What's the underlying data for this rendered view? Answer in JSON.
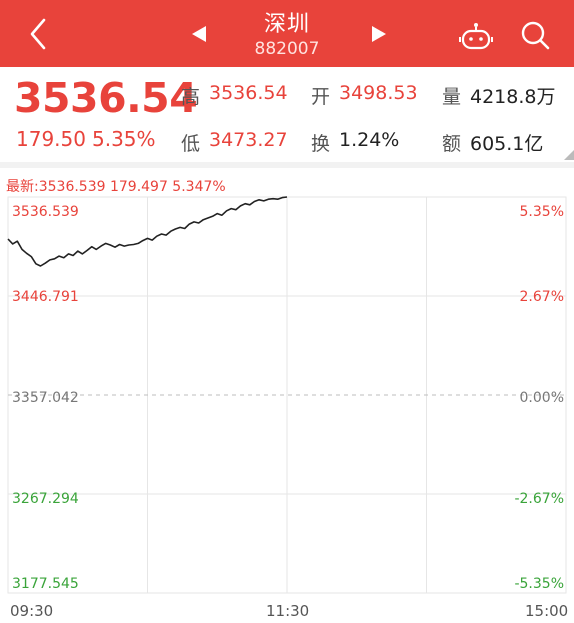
{
  "header": {
    "title": "深圳",
    "code": "882007",
    "icons": [
      "back-icon",
      "prev-arrow-icon",
      "next-arrow-icon",
      "robot-icon",
      "search-icon"
    ]
  },
  "quote": {
    "price": "3536.54",
    "change": "179.50",
    "change_pct": "5.35%",
    "high_label": "高",
    "high": "3536.54",
    "open_label": "开",
    "open": "3498.53",
    "volume_label": "量",
    "volume": "4218.8万",
    "low_label": "低",
    "low": "3473.27",
    "turnover_label": "换",
    "turnover": "1.24%",
    "amount_label": "额",
    "amount": "605.1亿"
  },
  "chart": {
    "latest_text": "最新:3536.539  179.497  5.347%"
  },
  "colors": {
    "brand": "#e8433b",
    "up": "#e8433b",
    "down": "#3aa43a"
  },
  "chart_data": {
    "type": "line",
    "x_label_ticks": [
      "09:30",
      "11:30",
      "15:00"
    ],
    "y_left_ticks": [
      "3536.539",
      "3446.791",
      "3357.042",
      "3267.294",
      "3177.545"
    ],
    "y_right_ticks": [
      "5.35%",
      "2.67%",
      "0.00%",
      "-2.67%",
      "-5.35%"
    ],
    "ylim": [
      3177.545,
      3536.539
    ],
    "prev_close": 3357.042,
    "total_minutes": 240,
    "x_minutes": [
      0,
      2,
      4,
      6,
      8,
      10,
      12,
      14,
      16,
      18,
      20,
      22,
      24,
      26,
      28,
      30,
      32,
      34,
      36,
      38,
      40,
      42,
      44,
      46,
      48,
      50,
      52,
      54,
      56,
      58,
      60,
      62,
      64,
      66,
      68,
      70,
      72,
      74,
      76,
      78,
      80,
      82,
      84,
      86,
      88,
      90,
      92,
      94,
      96,
      98,
      100,
      102,
      104,
      106,
      108,
      110,
      112,
      114,
      116,
      118,
      120
    ],
    "y_values": [
      3498.5,
      3494.0,
      3496.5,
      3489.0,
      3485.5,
      3482.5,
      3476.0,
      3474.0,
      3476.5,
      3479.5,
      3480.5,
      3483.0,
      3481.5,
      3485.0,
      3483.5,
      3487.5,
      3485.0,
      3488.0,
      3491.5,
      3489.0,
      3492.0,
      3494.5,
      3493.0,
      3491.0,
      3493.5,
      3492.0,
      3493.0,
      3493.5,
      3494.5,
      3497.0,
      3499.0,
      3497.5,
      3501.0,
      3503.0,
      3502.0,
      3505.5,
      3507.5,
      3509.0,
      3508.0,
      3512.0,
      3514.0,
      3513.0,
      3516.0,
      3517.5,
      3519.0,
      3521.5,
      3520.0,
      3524.0,
      3526.0,
      3525.0,
      3528.5,
      3530.5,
      3529.5,
      3532.5,
      3534.0,
      3533.0,
      3534.5,
      3535.0,
      3534.5,
      3536.0,
      3536.5
    ]
  }
}
